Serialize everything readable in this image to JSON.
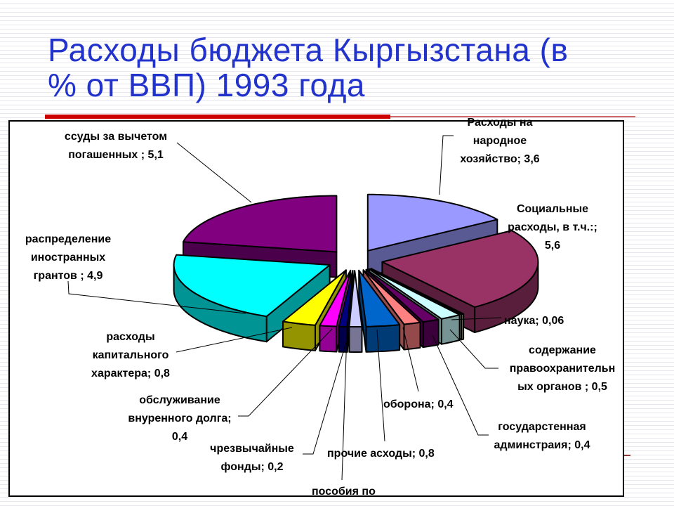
{
  "slide": {
    "title_lines": [
      "Расходы бюджета Кыргызстана (в",
      "% от ВВП) 1993 года"
    ]
  },
  "colors": {
    "title_text": "#2233CC",
    "divider_bar": "#CC0000",
    "divider_thin_line": "#D06A6A",
    "slice_outline": "#000000"
  },
  "chart_data": {
    "type": "pie",
    "style": "3d-exploded",
    "title": "Расходы бюджета Кыргызстана (в % от ВВП) 1993 года",
    "unit": "% от ВВП",
    "legend": "none",
    "slices": [
      {
        "id": "narodnoe",
        "label": "Расходы на народное хозяйство",
        "value": 3.6,
        "value_text": "3,6",
        "color": "#9999FF",
        "callout_lines": [
          "Расходы на",
          "народное",
          "хозяйство; 3,6"
        ]
      },
      {
        "id": "social",
        "label": "Социальные расходы, в т.ч.:",
        "value": 5.6,
        "value_text": "5,6",
        "color": "#993366",
        "callout_lines": [
          "Социальные",
          "расходы, в т.ч.:;",
          "5,6"
        ]
      },
      {
        "id": "nauka",
        "label": "наука",
        "value": 0.06,
        "value_text": "0,06",
        "color": "#FFFFCC",
        "callout_lines": [
          "наука; 0,06"
        ]
      },
      {
        "id": "pravo",
        "label": "содержание правоохранительных органов",
        "value": 0.5,
        "value_text": "0,5",
        "color": "#CCFFFF",
        "callout_lines": [
          "содержание",
          "правоохранительн",
          "ых органов ; 0,5"
        ]
      },
      {
        "id": "gosadm",
        "label": "государстенная админстраия",
        "value": 0.4,
        "value_text": "0,4",
        "color": "#660066",
        "callout_lines": [
          "государстенная",
          "админстраия; 0,4"
        ]
      },
      {
        "id": "oborona",
        "label": "оборона",
        "value": 0.4,
        "value_text": "0,4",
        "color": "#FF8080",
        "callout_lines": [
          "оборона; 0,4"
        ]
      },
      {
        "id": "prochie",
        "label": "прочие асходы",
        "value": 0.8,
        "value_text": "0,8",
        "color": "#0066CC",
        "callout_lines": [
          "прочие асходы; 0,8"
        ]
      },
      {
        "id": "posobiya",
        "label": "пособия по",
        "value": null,
        "value_text": null,
        "color": "#CCCCFF",
        "callout_lines": [
          "пособия по"
        ]
      },
      {
        "id": "chrezv",
        "label": "чрезвычайные фонды",
        "value": 0.2,
        "value_text": "0,2",
        "color": "#000080",
        "callout_lines": [
          "чрезвычайные",
          "фонды; 0,2"
        ]
      },
      {
        "id": "obsluzh",
        "label": "обслуживание внуренного долга",
        "value": 0.4,
        "value_text": "0,4",
        "color": "#FF00FF",
        "callout_lines": [
          "обслуживание",
          "внуренного долга;",
          "0,4"
        ]
      },
      {
        "id": "kapital",
        "label": "расходы капитального характера",
        "value": 0.8,
        "value_text": "0,8",
        "color": "#FFFF00",
        "callout_lines": [
          "расходы",
          "капитального",
          "характера; 0,8"
        ]
      },
      {
        "id": "raspred",
        "label": "распределение иностранных грантов",
        "value": 4.9,
        "value_text": "4,9",
        "color": "#00FFFF",
        "callout_lines": [
          "распределение",
          "иностранных",
          "грантов ; 4,9"
        ]
      },
      {
        "id": "ssudy",
        "label": "ссуды за вычетом погашенных",
        "value": 5.1,
        "value_text": "5,1",
        "color": "#800080",
        "callout_lines": [
          "ссуды за вычетом",
          "погашенных ; 5,1"
        ]
      }
    ]
  }
}
